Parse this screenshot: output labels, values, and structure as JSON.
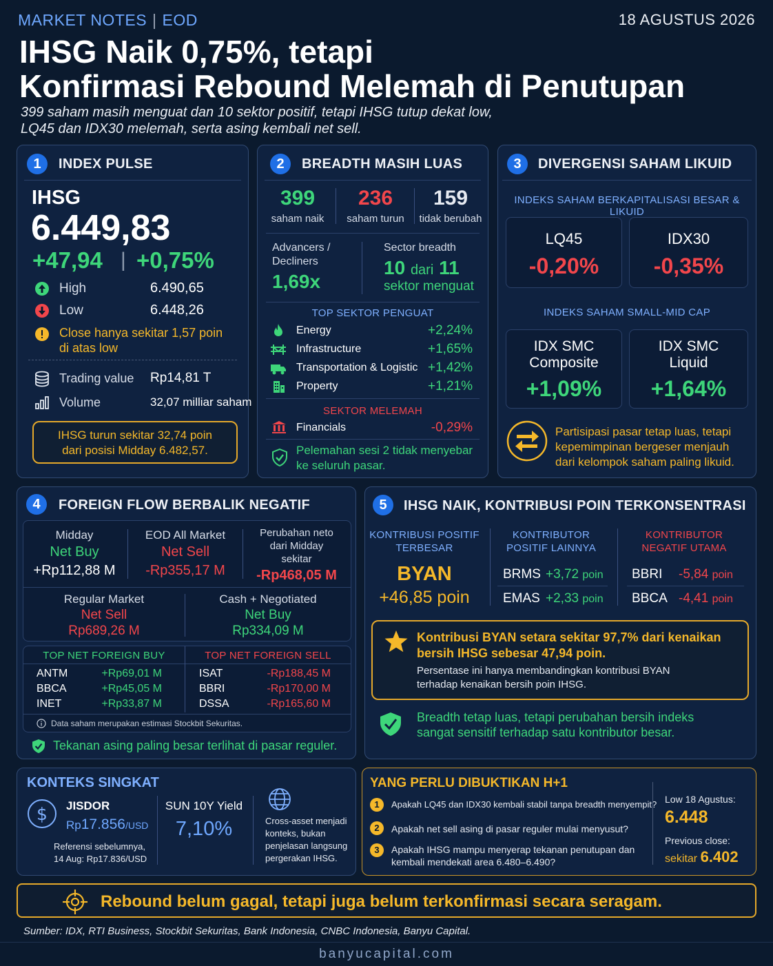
{
  "header": {
    "brand": "MARKET NOTES",
    "separator": "|",
    "edition": "EOD",
    "date": "18 AGUSTUS 2026",
    "title_line1": "IHSG Naik 0,75%, tetapi",
    "title_line2": "Konfirmasi Rebound Melemah di Penutupan",
    "subtitle_line1": "399 saham masih menguat dan 10 sektor positif, tetapi IHSG tutup dekat low,",
    "subtitle_line2": "LQ45 dan IDX30 melemah, serta asing kembali net sell."
  },
  "s1": {
    "num": "1",
    "title": "INDEX PULSE",
    "index_name": "IHSG",
    "value": "6.449,83",
    "change_pts": "+47,94",
    "change_sep": "|",
    "change_pct": "+0,75%",
    "high_label": "High",
    "high_value": "6.490,65",
    "low_label": "Low",
    "low_value": "6.448,26",
    "note_line1": "Close hanya sekitar 1,57 poin",
    "note_line2": "di atas low",
    "tv_label": "Trading value",
    "tv_value": "Rp14,81 T",
    "vol_label": "Volume",
    "vol_value": "32,07 milliar saham",
    "box_line1": "IHSG turun sekitar 32,74 poin",
    "box_line2": "dari posisi Midday 6.482,57."
  },
  "s2": {
    "num": "2",
    "title": "BREADTH MASIH LUAS",
    "up": "399",
    "up_label": "saham naik",
    "down": "236",
    "down_label": "saham turun",
    "flat": "159",
    "flat_label": "tidak berubah",
    "ad_label1": "Advancers /",
    "ad_label2": "Decliners",
    "ad_value": "1,69x",
    "sb_label": "Sector breadth",
    "sb_num1": "10",
    "sb_dari": "dari",
    "sb_num2": "11",
    "sb_text": "sektor menguat",
    "top_label": "TOP SEKTOR PENGUAT",
    "sectors": [
      {
        "name": "Energy",
        "value": "+2,24%"
      },
      {
        "name": "Infrastructure",
        "value": "+1,65%"
      },
      {
        "name": "Transportation & Logistic",
        "value": "+1,42%"
      },
      {
        "name": "Property",
        "value": "+1,21%"
      }
    ],
    "weak_label": "SEKTOR MELEMAH",
    "weak_name": "Financials",
    "weak_value": "-0,29%",
    "note_line1": "Pelemahan sesi 2 tidak menyebar",
    "note_line2": "ke seluruh pasar."
  },
  "s3": {
    "num": "3",
    "title": "DIVERGENSI SAHAM LIKUID",
    "big_label": "INDEKS SAHAM BERKAPITALISASI BESAR & LIKUID",
    "lq45_name": "LQ45",
    "lq45_value": "-0,20%",
    "idx30_name": "IDX30",
    "idx30_value": "-0,35%",
    "small_label": "INDEKS SAHAM SMALL-MID CAP",
    "smc_comp_line1": "IDX SMC",
    "smc_comp_line2": "Composite",
    "smc_comp_value": "+1,09%",
    "smc_liq_line1": "IDX SMC",
    "smc_liq_line2": "Liquid",
    "smc_liq_value": "+1,64%",
    "note_line1": "Partisipasi pasar tetap luas, tetapi",
    "note_line2": "kepemimpinan bergeser menjauh",
    "note_line3": "dari kelompok saham paling likuid."
  },
  "s4": {
    "num": "4",
    "title": "FOREIGN FLOW BERBALIK NEGATIF",
    "midday_label": "Midday",
    "midday_status": "Net Buy",
    "midday_value": "+Rp112,88 M",
    "eod_label": "EOD All Market",
    "eod_status": "Net Sell",
    "eod_value": "-Rp355,17 M",
    "chg_line1": "Perubahan neto",
    "chg_line2": "dari Midday",
    "chg_line3": "sekitar",
    "chg_value": "-Rp468,05 M",
    "reg_label": "Regular Market",
    "reg_status": "Net Sell",
    "reg_value": "Rp689,26 M",
    "cash_label": "Cash + Negotiated",
    "cash_status": "Net Buy",
    "cash_value": "Rp334,09 M",
    "buy_label": "TOP NET FOREIGN BUY",
    "sell_label": "TOP NET FOREIGN SELL",
    "buys": [
      {
        "code": "ANTM",
        "value": "+Rp69,01 M"
      },
      {
        "code": "BBCA",
        "value": "+Rp45,05 M"
      },
      {
        "code": "INET",
        "value": "+Rp33,87 M"
      }
    ],
    "sells": [
      {
        "code": "ISAT",
        "value": "-Rp188,45 M"
      },
      {
        "code": "BBRI",
        "value": "-Rp170,00 M"
      },
      {
        "code": "DSSA",
        "value": "-Rp165,60 M"
      }
    ],
    "footnote": "Data saham merupakan estimasi Stockbit Sekuritas.",
    "note": "Tekanan asing paling besar terlihat di pasar reguler."
  },
  "s5": {
    "num": "5",
    "title": "IHSG NAIK, KONTRIBUSI POIN TERKONSENTRASI",
    "pos_top_line1": "KONTRIBUSI POSITIF",
    "pos_top_line2": "TERBESAR",
    "top_code": "BYAN",
    "top_value": "+46,85 poin",
    "pos_other_line1": "KONTRIBUTOR",
    "pos_other_line2": "POSITIF LAINNYA",
    "pos_others": [
      {
        "code": "BRMS",
        "value": "+3,72",
        "unit": "poin"
      },
      {
        "code": "EMAS",
        "value": "+2,33",
        "unit": "poin"
      }
    ],
    "neg_line1": "KONTRIBUTOR",
    "neg_line2": "NEGATIF UTAMA",
    "negs": [
      {
        "code": "BBRI",
        "value": "-5,84",
        "unit": "poin"
      },
      {
        "code": "BBCA",
        "value": "-4,41",
        "unit": "poin"
      }
    ],
    "box_line1": "Kontribusi BYAN setara sekitar 97,7% dari kenaikan",
    "box_line2": "bersih IHSG sebesar  47,94 poin.",
    "box_sub1": "Persentase ini hanya membandingkan kontribusi BYAN",
    "box_sub2": "terhadap kenaikan bersih poin IHSG.",
    "note_line1": "Breadth tetap luas, tetapi perubahan bersih indeks",
    "note_line2": "sangat sensitif terhadap satu kontributor besar."
  },
  "konteks": {
    "title": "KONTEKS SINGKAT",
    "jisdor_label": "JISDOR",
    "jisdor_prefix": "Rp",
    "jisdor_value": "17.856",
    "jisdor_unit": "/USD",
    "ref_line1": "Referensi sebelumnya,",
    "ref_line2": "14 Aug: Rp17.836/USD",
    "sun_label": "SUN 10Y Yield",
    "sun_value": "7,10%",
    "cross_line1": "Cross-asset menjadi",
    "cross_line2": "konteks, bukan",
    "cross_line3": "penjelasan langsung",
    "cross_line4": "pergerakan IHSG."
  },
  "h1": {
    "title": "YANG PERLU DIBUKTIKAN H+1",
    "items": [
      {
        "num": "1",
        "line1": "Apakah LQ45 dan IDX30 kembali stabil tanpa breadth menyempit?",
        "line2": ""
      },
      {
        "num": "2",
        "line1": "Apakah net sell asing di pasar reguler mulai menyusut?",
        "line2": ""
      },
      {
        "num": "3",
        "line1": "Apakah IHSG mampu menyerap tekanan penutupan dan",
        "line2": "kembali mendekati area 6.480–6.490?"
      }
    ],
    "low_label": "Low 18 Agustus:",
    "low_value": "6.448",
    "prev_label": "Previous close:",
    "prev_prefix": "sekitar",
    "prev_value": "6.402"
  },
  "banner": {
    "text": "Rebound belum gagal, tetapi juga belum terkonfirmasi secara seragam."
  },
  "footer": {
    "source": "Sumber: IDX, RTI Business, Stockbit Sekuritas, Bank Indonesia, CNBC Indonesia, Banyu Capital.",
    "site": "banyucapital.com"
  },
  "colors": {
    "background": "#0b1a2e",
    "positive": "#3ed67a",
    "negative": "#f2464b",
    "highlight": "#f5b82a",
    "accent": "#1f6fe6"
  }
}
